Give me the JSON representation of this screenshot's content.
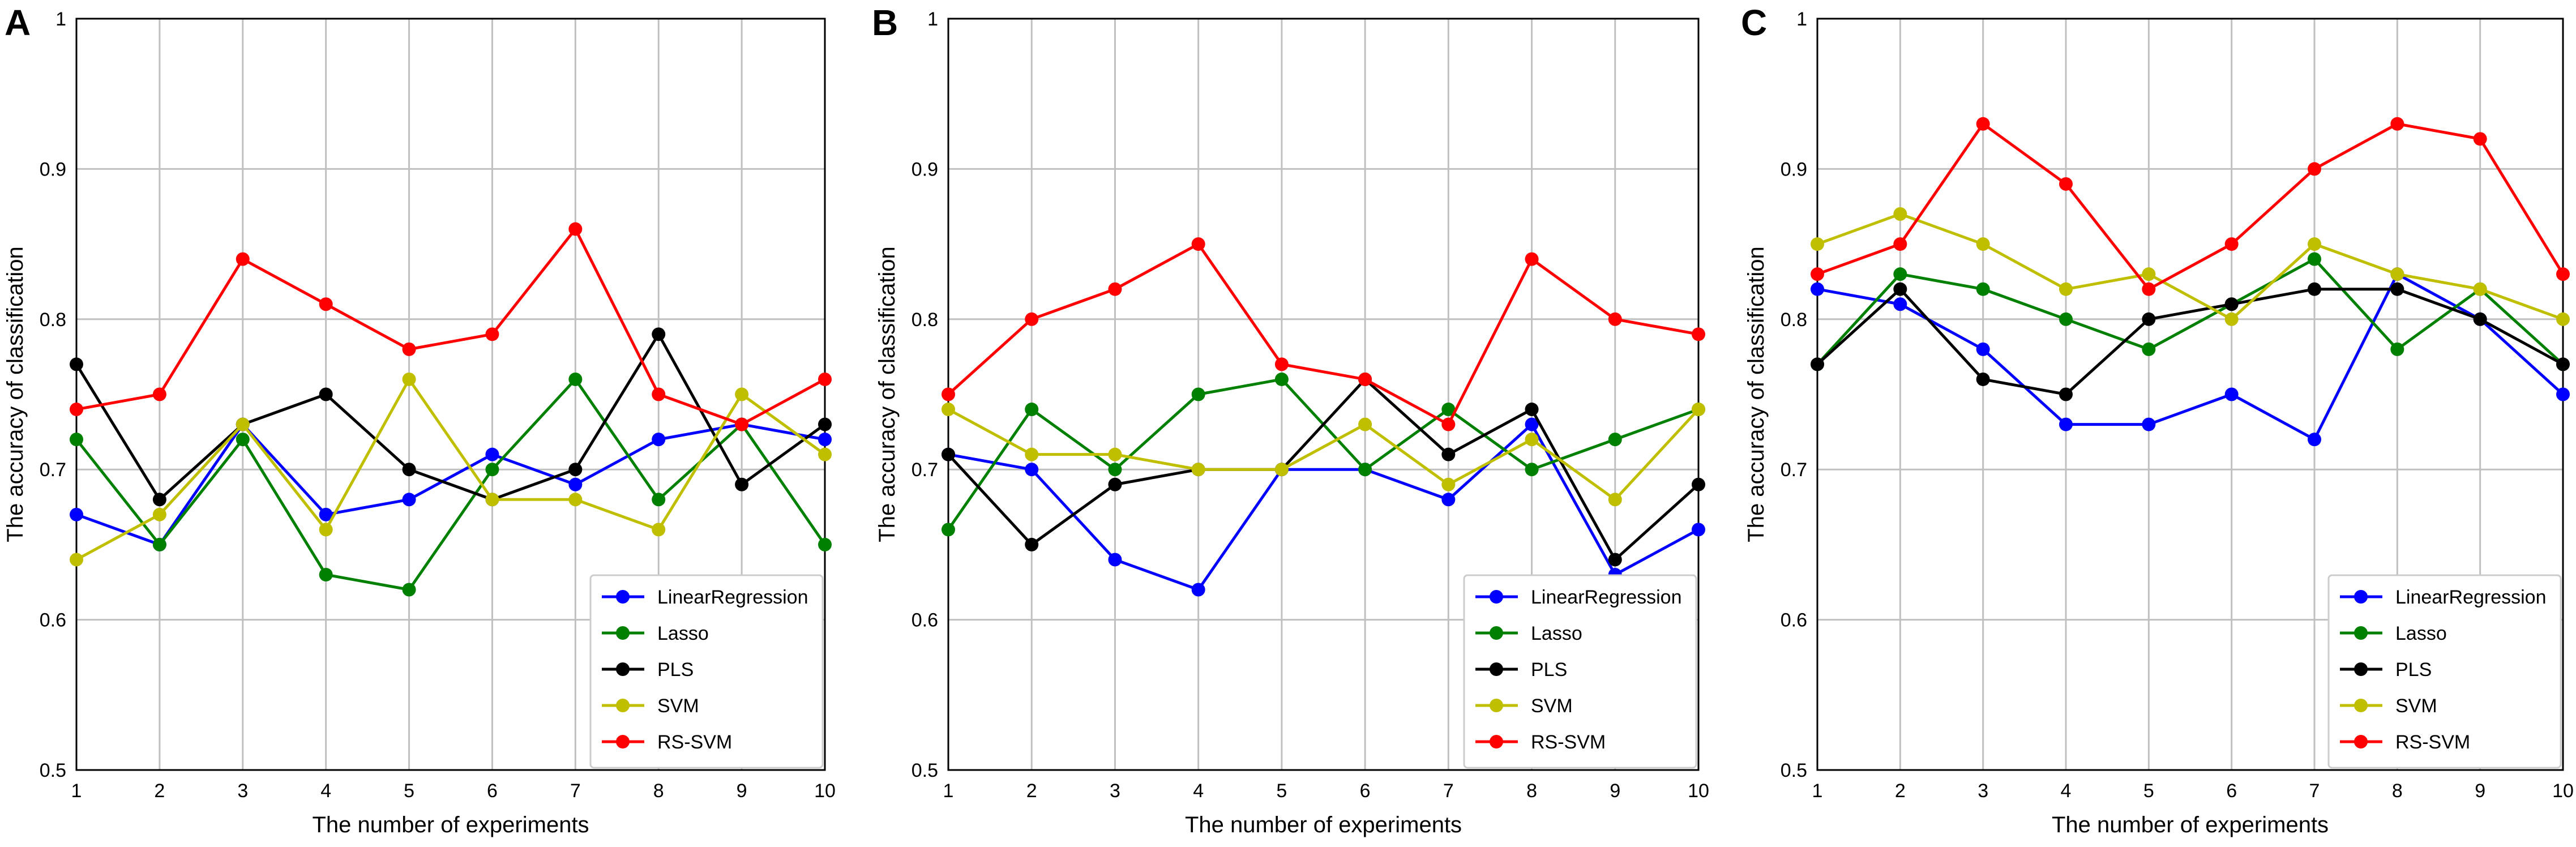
{
  "figure": {
    "colors": {
      "LinearRegression": "#0000ff",
      "Lasso": "#008000",
      "PLS": "#000000",
      "SVM": "#bfbf00",
      "RS-SVM": "#ff0000"
    }
  },
  "chart_data": [
    {
      "panel_label": "A",
      "type": "line",
      "title": "",
      "xlabel": "The number of experiments",
      "ylabel": "The accuracy of classification",
      "xlim": [
        1,
        10
      ],
      "ylim": [
        0.5,
        1
      ],
      "x": [
        1,
        2,
        3,
        4,
        5,
        6,
        7,
        8,
        9,
        10
      ],
      "x_tick_labels": [
        "1",
        "2",
        "3",
        "4",
        "5",
        "6",
        "7",
        "8",
        "9",
        "10"
      ],
      "y_ticks": [
        0.5,
        0.6,
        0.7,
        0.8,
        0.9,
        1
      ],
      "y_tick_labels": [
        "0.5",
        "0.6",
        "0.7",
        "0.8",
        "0.9",
        "1"
      ],
      "grid": true,
      "legend_position": "bottom-right",
      "series": [
        {
          "name": "LinearRegression",
          "values": [
            0.67,
            0.65,
            0.73,
            0.67,
            0.68,
            0.71,
            0.69,
            0.72,
            0.73,
            0.72
          ]
        },
        {
          "name": "Lasso",
          "values": [
            0.72,
            0.65,
            0.72,
            0.63,
            0.62,
            0.7,
            0.76,
            0.68,
            0.73,
            0.65
          ]
        },
        {
          "name": "PLS",
          "values": [
            0.77,
            0.68,
            0.73,
            0.75,
            0.7,
            0.68,
            0.7,
            0.79,
            0.69,
            0.73
          ]
        },
        {
          "name": "SVM",
          "values": [
            0.64,
            0.67,
            0.73,
            0.66,
            0.76,
            0.68,
            0.68,
            0.66,
            0.75,
            0.71
          ]
        },
        {
          "name": "RS-SVM",
          "values": [
            0.74,
            0.75,
            0.84,
            0.81,
            0.78,
            0.79,
            0.86,
            0.75,
            0.73,
            0.76
          ]
        }
      ]
    },
    {
      "panel_label": "B",
      "type": "line",
      "title": "",
      "xlabel": "The number of experiments",
      "ylabel": "The accuracy of classification",
      "xlim": [
        1,
        10
      ],
      "ylim": [
        0.5,
        1
      ],
      "x": [
        1,
        2,
        3,
        4,
        5,
        6,
        7,
        8,
        9,
        10
      ],
      "x_tick_labels": [
        "1",
        "2",
        "3",
        "4",
        "5",
        "6",
        "7",
        "8",
        "9",
        "10"
      ],
      "y_ticks": [
        0.5,
        0.6,
        0.7,
        0.8,
        0.9,
        1
      ],
      "y_tick_labels": [
        "0.5",
        "0.6",
        "0.7",
        "0.8",
        "0.9",
        "1"
      ],
      "grid": true,
      "legend_position": "bottom-right",
      "series": [
        {
          "name": "LinearRegression",
          "values": [
            0.71,
            0.7,
            0.64,
            0.62,
            0.7,
            0.7,
            0.68,
            0.73,
            0.63,
            0.66
          ]
        },
        {
          "name": "Lasso",
          "values": [
            0.66,
            0.74,
            0.7,
            0.75,
            0.76,
            0.7,
            0.74,
            0.7,
            0.72,
            0.74
          ]
        },
        {
          "name": "PLS",
          "values": [
            0.71,
            0.65,
            0.69,
            0.7,
            0.7,
            0.76,
            0.71,
            0.74,
            0.64,
            0.69
          ]
        },
        {
          "name": "SVM",
          "values": [
            0.74,
            0.71,
            0.71,
            0.7,
            0.7,
            0.73,
            0.69,
            0.72,
            0.68,
            0.74
          ]
        },
        {
          "name": "RS-SVM",
          "values": [
            0.75,
            0.8,
            0.82,
            0.85,
            0.77,
            0.76,
            0.73,
            0.84,
            0.8,
            0.79
          ]
        }
      ]
    },
    {
      "panel_label": "C",
      "type": "line",
      "title": "",
      "xlabel": "The number of experiments",
      "ylabel": "The accuracy of classification",
      "xlim": [
        1,
        10
      ],
      "ylim": [
        0.5,
        1
      ],
      "x": [
        1,
        2,
        3,
        4,
        5,
        6,
        7,
        8,
        9,
        10
      ],
      "x_tick_labels": [
        "1",
        "2",
        "3",
        "4",
        "5",
        "6",
        "7",
        "8",
        "9",
        "10"
      ],
      "y_ticks": [
        0.5,
        0.6,
        0.7,
        0.8,
        0.9,
        1
      ],
      "y_tick_labels": [
        "0.5",
        "0.6",
        "0.7",
        "0.8",
        "0.9",
        "1"
      ],
      "grid": true,
      "legend_position": "bottom-right",
      "series": [
        {
          "name": "LinearRegression",
          "values": [
            0.82,
            0.81,
            0.78,
            0.73,
            0.73,
            0.75,
            0.72,
            0.83,
            0.8,
            0.75
          ]
        },
        {
          "name": "Lasso",
          "values": [
            0.77,
            0.83,
            0.82,
            0.8,
            0.78,
            0.81,
            0.84,
            0.78,
            0.82,
            0.77
          ]
        },
        {
          "name": "PLS",
          "values": [
            0.77,
            0.82,
            0.76,
            0.75,
            0.8,
            0.81,
            0.82,
            0.82,
            0.8,
            0.77
          ]
        },
        {
          "name": "SVM",
          "values": [
            0.85,
            0.87,
            0.85,
            0.82,
            0.83,
            0.8,
            0.85,
            0.83,
            0.82,
            0.8
          ]
        },
        {
          "name": "RS-SVM",
          "values": [
            0.83,
            0.85,
            0.93,
            0.89,
            0.82,
            0.85,
            0.9,
            0.93,
            0.92,
            0.83
          ]
        }
      ]
    }
  ]
}
